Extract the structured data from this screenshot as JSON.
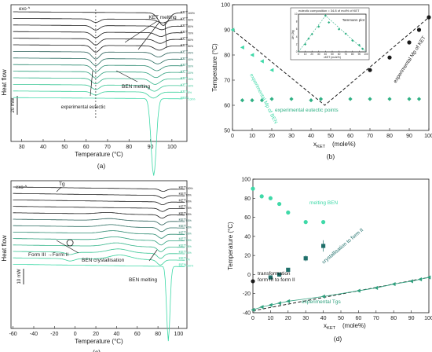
{
  "colors": {
    "black": "#1a1a1a",
    "green_light": "#3fd9a8",
    "green_mid": "#2fb084",
    "green_dark": "#1e7a5f",
    "teal": "#1f6f6a"
  },
  "chart_data": [
    {
      "type": "line",
      "panel_label": "(a)",
      "xlabel": "Temperature (°C)",
      "ylabel": "Heat flow",
      "xlim": [
        25,
        107
      ],
      "xticks": [
        30,
        40,
        50,
        60,
        70,
        80,
        90,
        100
      ],
      "exo_label": "exo ^",
      "scale_bar_label": "20 mW",
      "annotations": [
        "KET melting",
        "experimental eutectic",
        "BEN melting"
      ],
      "curve_labels": [
        "KET100%",
        "KET90%",
        "KET80%",
        "KET70%",
        "KET60%",
        "KET50%",
        "KET45%",
        "KET40%",
        "KET30%",
        "KET20%",
        "KET15%",
        "KET10%",
        "KET5%",
        "BEN100%"
      ],
      "curve_colors": [
        "#1a1a1a",
        "#1a1a1a",
        "#1a1a1a",
        "#1a1a1a",
        "#1a1a1a",
        "#1a1a1a",
        "#2a5e57",
        "#2a6d60",
        "#2c8a70",
        "#2fa07e",
        "#34b58a",
        "#38c594",
        "#3cd09c",
        "#3fd9a8"
      ]
    },
    {
      "type": "scatter",
      "panel_label": "(b)",
      "xlabel": "xKET (mole%)",
      "ylabel": "Temperature (°C)",
      "xlim": [
        0,
        100
      ],
      "ylim": [
        50,
        100
      ],
      "xticks": [
        0,
        10,
        20,
        30,
        40,
        50,
        60,
        70,
        80,
        90,
        100
      ],
      "yticks": [
        50,
        60,
        70,
        80,
        90,
        100
      ],
      "annotations": [
        "experimental Mp of BEN",
        "experimental eutectic points",
        "experimental Mp of KET"
      ],
      "series": [
        {
          "name": "experimental Mp of KET",
          "marker": "circle",
          "color": "#1a1a1a",
          "x": [
            70,
            80,
            90,
            95,
            100
          ],
          "y": [
            74,
            79,
            85,
            90,
            95
          ]
        },
        {
          "name": "experimental Mp of BEN",
          "marker": "triangle",
          "color": "#3fd9a8",
          "x": [
            0,
            5,
            10,
            15,
            20
          ],
          "y": [
            90,
            83,
            80,
            77.5,
            74
          ]
        },
        {
          "name": "experimental eutectic points",
          "marker": "diamond",
          "color": "#2fb084",
          "x": [
            5,
            10,
            15,
            20,
            30,
            40,
            45,
            60,
            70,
            80,
            90,
            95
          ],
          "y": [
            62,
            62,
            62,
            62.5,
            62.5,
            62,
            62.5,
            62.5,
            62.5,
            62.5,
            62.5,
            62.5
          ]
        }
      ],
      "liquidus": {
        "x": [
          0,
          47,
          100
        ],
        "y": [
          90,
          60,
          95
        ]
      },
      "inset": {
        "title": "Tammann plot",
        "note": "eutectic composition = 34.8 of mol% of KET",
        "xlabel": "xKET (mole%)",
        "xticks": [
          0,
          10,
          20,
          30,
          40,
          50,
          60,
          70,
          80,
          90,
          100
        ],
        "yticks": [
          0,
          2,
          4,
          6,
          8,
          10
        ],
        "ylabel": "ΔH (J/g)",
        "x": [
          10,
          15,
          20,
          30,
          40,
          45,
          60,
          70,
          80,
          90,
          95
        ],
        "y": [
          2,
          3.5,
          4.7,
          6.7,
          9.6,
          7.8,
          6,
          4.8,
          3,
          1.8,
          0.8
        ]
      }
    },
    {
      "type": "line",
      "panel_label": "(c)",
      "xlabel": "Temperature (°C)",
      "ylabel": "Heat flow",
      "xlim": [
        -62,
        108
      ],
      "xticks": [
        -60,
        -40,
        -20,
        0,
        20,
        40,
        60,
        80,
        100
      ],
      "exo_label": "exo ^",
      "scale_bar_label": "10 mW",
      "annotations": [
        "Tg",
        "BEN crystallisation",
        "Form III  →Form II",
        "BEN melting"
      ],
      "curve_labels": [
        "KET100%",
        "KET90%",
        "KET80%",
        "KET70%",
        "KET60%",
        "KET50%",
        "KET40%",
        "KET30%",
        "KET20%",
        "KET15%",
        "KET10%",
        "KET5%",
        "BEN100%"
      ],
      "curve_colors": [
        "#1a1a1a",
        "#1a1a1a",
        "#1a1a1a",
        "#1a1a1a",
        "#1a1a1a",
        "#2a5e57",
        "#2a6d60",
        "#2c8a70",
        "#2fa07e",
        "#34b58a",
        "#38c594",
        "#3cd09c",
        "#3fd9a8"
      ]
    },
    {
      "type": "scatter",
      "panel_label": "(d)",
      "xlabel": "xKET (mole%)",
      "ylabel": "Temperature (°C)",
      "xlim": [
        0,
        100
      ],
      "ylim": [
        -40,
        100
      ],
      "xticks": [
        0,
        10,
        20,
        30,
        40,
        50,
        60,
        70,
        80,
        90,
        100
      ],
      "yticks": [
        -40,
        -20,
        0,
        20,
        40,
        60,
        80,
        100
      ],
      "annotations": [
        "melting BEN",
        "crystallisation to form II",
        "transformation\nform III to form II",
        "experimental Tgs"
      ],
      "series": [
        {
          "name": "melting BEN",
          "marker": "circle",
          "color": "#3fd9a8",
          "x": [
            0,
            5,
            10,
            15,
            20,
            30,
            40
          ],
          "y": [
            90,
            82,
            80,
            74,
            65,
            55,
            55
          ]
        },
        {
          "name": "crystallisation to form II",
          "marker": "square",
          "color": "#1f6f6a",
          "x": [
            10,
            15,
            20,
            30,
            40
          ],
          "y": [
            -3,
            0,
            5,
            17,
            30
          ]
        },
        {
          "name": "transformation form III to form II",
          "marker": "circle",
          "color": "#1a1a1a",
          "x": [
            0
          ],
          "y": [
            -7
          ]
        },
        {
          "name": "experimental Tgs",
          "marker": "triangle",
          "color": "#2fa07e",
          "x": [
            0,
            5,
            10,
            15,
            20,
            40,
            60,
            70,
            80,
            90,
            95,
            100
          ],
          "y": [
            -37,
            -34,
            -32,
            -30,
            -28,
            -23,
            -17,
            -14,
            -10,
            -7,
            -5,
            -3
          ]
        }
      ],
      "tg_fit": {
        "x": [
          0,
          100
        ],
        "y": [
          -38,
          -3
        ]
      }
    }
  ]
}
